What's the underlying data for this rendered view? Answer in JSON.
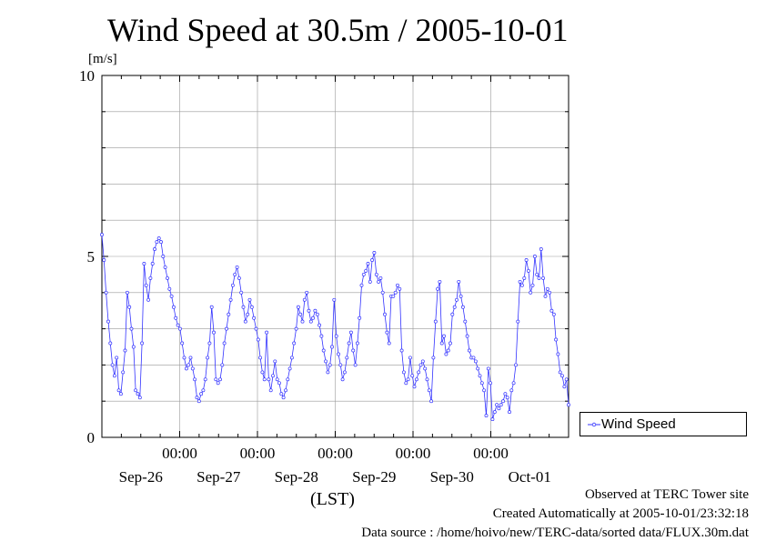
{
  "chart_data": {
    "type": "line",
    "title": "Wind Speed at 30.5m / 2005-10-01",
    "ylabel": "[m/s]",
    "xlabel": "(LST)",
    "ylim": [
      0,
      10
    ],
    "yticks": [
      0,
      5,
      10
    ],
    "xlim_days": [
      0,
      6
    ],
    "time_ticks": [
      "00:00",
      "00:00",
      "00:00",
      "00:00",
      "00:00"
    ],
    "date_ticks": [
      "Sep-26",
      "Sep-27",
      "Sep-28",
      "Sep-29",
      "Sep-30",
      "Oct-01"
    ],
    "grid": true,
    "legend_position": "right-bottom, outside plot",
    "color": "#3333ff",
    "series": [
      {
        "name": "Wind Speed",
        "values": [
          5.6,
          4.9,
          4.0,
          3.2,
          2.6,
          2.0,
          1.7,
          2.2,
          1.3,
          1.2,
          1.8,
          2.4,
          4.0,
          3.6,
          3.0,
          2.5,
          1.3,
          1.2,
          1.1,
          2.6,
          4.8,
          4.2,
          3.8,
          4.4,
          4.8,
          5.2,
          5.4,
          5.5,
          5.4,
          5.0,
          4.7,
          4.4,
          4.1,
          3.9,
          3.6,
          3.3,
          3.1,
          3.0,
          2.6,
          2.2,
          1.9,
          2.0,
          2.2,
          1.9,
          1.6,
          1.1,
          1.0,
          1.2,
          1.3,
          1.6,
          2.2,
          2.6,
          3.6,
          2.9,
          1.6,
          1.5,
          1.6,
          2.0,
          2.6,
          3.0,
          3.4,
          3.8,
          4.2,
          4.5,
          4.7,
          4.4,
          4.0,
          3.6,
          3.2,
          3.4,
          3.8,
          3.6,
          3.3,
          3.0,
          2.7,
          2.2,
          1.8,
          1.6,
          2.9,
          1.6,
          1.3,
          1.7,
          2.1,
          1.6,
          1.5,
          1.2,
          1.1,
          1.3,
          1.6,
          1.9,
          2.2,
          2.6,
          3.0,
          3.6,
          3.4,
          3.2,
          3.8,
          4.0,
          3.5,
          3.2,
          3.3,
          3.5,
          3.4,
          3.1,
          2.8,
          2.4,
          2.1,
          1.8,
          2.0,
          2.5,
          3.8,
          2.8,
          2.3,
          2.0,
          1.6,
          1.8,
          2.2,
          2.6,
          2.9,
          2.4,
          2.0,
          2.6,
          3.3,
          4.2,
          4.5,
          4.6,
          4.8,
          4.3,
          4.9,
          5.1,
          4.5,
          4.3,
          4.4,
          4.0,
          3.4,
          2.9,
          2.6,
          3.9,
          3.9,
          4.0,
          4.2,
          4.1,
          2.4,
          1.8,
          1.5,
          1.6,
          2.2,
          1.7,
          1.4,
          1.6,
          1.8,
          2.0,
          2.1,
          1.9,
          1.6,
          1.3,
          1.0,
          2.2,
          3.2,
          4.1,
          4.3,
          2.6,
          2.8,
          2.3,
          2.4,
          2.6,
          3.4,
          3.6,
          3.8,
          4.3,
          3.9,
          3.6,
          3.2,
          2.8,
          2.4,
          2.2,
          2.2,
          2.1,
          1.9,
          1.7,
          1.5,
          1.3,
          0.6,
          1.9,
          1.5,
          0.5,
          0.7,
          0.9,
          0.8,
          0.9,
          1.0,
          1.2,
          1.1,
          0.7,
          1.3,
          1.5,
          2.0,
          3.2,
          4.3,
          4.2,
          4.4,
          4.9,
          4.6,
          4.0,
          4.2,
          5.0,
          4.5,
          4.4,
          5.2,
          4.4,
          3.9,
          4.1,
          4.0,
          3.5,
          3.4,
          2.7,
          2.3,
          1.8,
          1.7,
          1.4,
          1.6,
          0.9
        ]
      }
    ]
  },
  "footer": {
    "line1": "Observed at TERC Tower site",
    "line2": "Created Automatically at 2005-10-01/23:32:18",
    "line3": "Data source : /home/hoivo/new/TERC-data/sorted  data/FLUX.30m.dat"
  }
}
